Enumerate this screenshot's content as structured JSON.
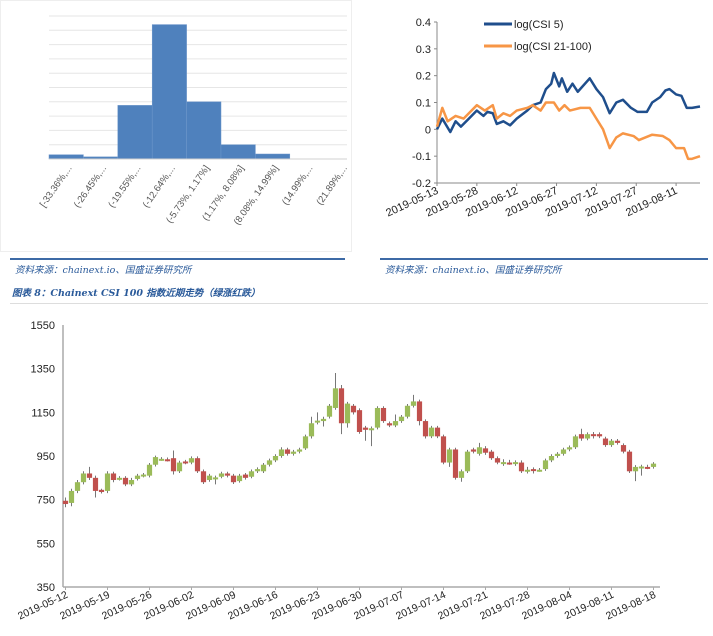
{
  "colors": {
    "bar": "#4f81bd",
    "csi5": "#1f4e8c",
    "csi21": "#f79646",
    "up": "#9bbb59",
    "down": "#c0504d",
    "caption": "#2a5a9a"
  },
  "captions": {
    "source_left": "资料来源：chainext.io、国盛证券研究所",
    "source_right": "资料来源：chainext.io、国盛证券研究所",
    "figure8": "图表 8：Chainext CSI 100 指数近期走势（绿涨红跌）"
  },
  "chart_data": [
    {
      "type": "bar",
      "title": "",
      "categories": [
        "[-33.36%,...",
        "(-26.45%,...",
        "(-19.55%,...",
        "(-12.64%,...",
        "(-5.73%, 1.17%]",
        "(1.17%, 8.08%]",
        "(8.08%, 14.99%]",
        "(14.99%,...",
        "(21.89%,..."
      ],
      "values": [
        0.3,
        0.15,
        3.75,
        9.4,
        4.0,
        1.0,
        0.35,
        0,
        0
      ],
      "ylim": [
        0,
        10
      ],
      "grid": true
    },
    {
      "type": "line",
      "x_unit": "days since 2019-05-13",
      "xlim": [
        0,
        99
      ],
      "ylim": [
        -0.2,
        0.4
      ],
      "yticks": [
        "0.4",
        "0.3",
        "0.2",
        "0.1",
        "0",
        "-0.1",
        "-0.2"
      ],
      "ytick_values": [
        0.4,
        0.3,
        0.2,
        0.1,
        0,
        -0.1,
        -0.2
      ],
      "xticks": [
        "2019-05-13",
        "2019-05-28",
        "2019-06-12",
        "2019-06-27",
        "2019-07-12",
        "2019-07-27",
        "2019-08-11"
      ],
      "xtick_values": [
        0,
        15,
        30,
        45,
        60,
        75,
        90
      ],
      "legend": "top-left",
      "series": [
        {
          "name": "log(CSI 5)",
          "x": [
            0,
            2,
            5,
            7,
            9,
            12,
            15,
            17.5,
            19,
            21,
            22.5,
            25,
            27.5,
            30,
            34,
            36,
            39,
            41,
            43,
            44,
            46,
            47,
            49,
            51,
            53,
            57.5,
            60,
            62.5,
            65,
            67.5,
            70,
            73,
            75.5,
            79,
            81,
            84,
            86,
            87.5,
            90,
            92,
            94,
            96,
            99
          ],
          "y": [
            0,
            0.04,
            -0.01,
            0.03,
            0.01,
            0.04,
            0.07,
            0.05,
            0.065,
            0.06,
            0.02,
            0.03,
            0.015,
            0.04,
            0.07,
            0.09,
            0.1,
            0.15,
            0.17,
            0.21,
            0.16,
            0.19,
            0.14,
            0.17,
            0.14,
            0.19,
            0.15,
            0.12,
            0.06,
            0.1,
            0.11,
            0.08,
            0.065,
            0.065,
            0.1,
            0.12,
            0.145,
            0.15,
            0.13,
            0.125,
            0.08,
            0.08,
            0.085
          ]
        },
        {
          "name": "log(CSI 21-100)",
          "x": [
            0,
            2,
            4,
            7,
            10,
            12,
            15,
            18,
            21,
            22.5,
            25,
            27.5,
            30,
            34,
            36,
            39,
            41,
            44,
            46,
            48,
            50,
            54,
            57.5,
            60,
            62.5,
            65,
            67.5,
            70,
            74,
            76,
            81,
            85,
            87.5,
            90,
            93,
            94.5,
            96,
            99
          ],
          "y": [
            0.01,
            0.08,
            0.03,
            0.05,
            0.04,
            0.06,
            0.09,
            0.07,
            0.09,
            0.04,
            0.06,
            0.05,
            0.07,
            0.08,
            0.09,
            0.07,
            0.1,
            0.1,
            0.07,
            0.09,
            0.07,
            0.08,
            0.08,
            0.04,
            0.0,
            -0.07,
            -0.03,
            -0.015,
            -0.025,
            -0.04,
            -0.02,
            -0.025,
            -0.04,
            -0.07,
            -0.07,
            -0.11,
            -0.11,
            -0.1
          ]
        }
      ]
    },
    {
      "type": "candlestick",
      "title": "Chainext CSI 100",
      "ylim": [
        350,
        1550
      ],
      "yticks": [
        "1550",
        "1350",
        "1150",
        "950",
        "750",
        "550",
        "350"
      ],
      "ytick_values": [
        1550,
        1350,
        1150,
        950,
        750,
        550,
        350
      ],
      "xticks": [
        "2019-05-12",
        "2019-05-19",
        "2019-05-26",
        "2019-06-02",
        "2019-06-09",
        "2019-06-16",
        "2019-06-23",
        "2019-06-30",
        "2019-07-07",
        "2019-07-14",
        "2019-07-21",
        "2019-07-28",
        "2019-08-04",
        "2019-08-11",
        "2019-08-18"
      ],
      "xtick_values": [
        0,
        7,
        14,
        21,
        28,
        35,
        42,
        49,
        56,
        63,
        70,
        77,
        84,
        91,
        98
      ],
      "ohlc_note": "[open, high, low, close], one per day from 2019-05-12",
      "candles": [
        [
          745,
          760,
          715,
          730
        ],
        [
          735,
          800,
          720,
          790
        ],
        [
          790,
          840,
          780,
          830
        ],
        [
          830,
          880,
          820,
          870
        ],
        [
          870,
          900,
          840,
          850
        ],
        [
          850,
          860,
          760,
          790
        ],
        [
          795,
          800,
          778,
          785
        ],
        [
          790,
          880,
          780,
          870
        ],
        [
          870,
          878,
          830,
          840
        ],
        [
          845,
          858,
          838,
          850
        ],
        [
          850,
          858,
          812,
          820
        ],
        [
          820,
          850,
          812,
          840
        ],
        [
          845,
          868,
          838,
          860
        ],
        [
          860,
          872,
          852,
          865
        ],
        [
          860,
          918,
          852,
          910
        ],
        [
          910,
          952,
          902,
          945
        ],
        [
          935,
          945,
          928,
          937
        ],
        [
          935,
          943,
          925,
          933
        ],
        [
          940,
          975,
          865,
          880
        ],
        [
          880,
          928,
          872,
          920
        ],
        [
          925,
          932,
          912,
          920
        ],
        [
          920,
          948,
          912,
          940
        ],
        [
          940,
          948,
          872,
          880
        ],
        [
          880,
          888,
          822,
          830
        ],
        [
          840,
          868,
          832,
          860
        ],
        [
          850,
          860,
          820,
          852
        ],
        [
          855,
          878,
          848,
          870
        ],
        [
          870,
          878,
          852,
          860
        ],
        [
          860,
          868,
          822,
          830
        ],
        [
          835,
          868,
          828,
          860
        ],
        [
          865,
          872,
          842,
          850
        ],
        [
          855,
          888,
          848,
          880
        ],
        [
          880,
          898,
          872,
          890
        ],
        [
          880,
          918,
          872,
          910
        ],
        [
          910,
          938,
          902,
          930
        ],
        [
          930,
          958,
          922,
          950
        ],
        [
          950,
          990,
          942,
          980
        ],
        [
          980,
          988,
          952,
          960
        ],
        [
          960,
          978,
          952,
          970
        ],
        [
          970,
          988,
          962,
          980
        ],
        [
          985,
          1048,
          978,
          1040
        ],
        [
          1040,
          1130,
          1030,
          1100
        ],
        [
          1110,
          1150,
          1095,
          1112
        ],
        [
          1110,
          1130,
          1085,
          1120
        ],
        [
          1130,
          1188,
          1122,
          1180
        ],
        [
          1170,
          1330,
          1162,
          1260
        ],
        [
          1260,
          1275,
          1050,
          1100
        ],
        [
          1100,
          1198,
          1080,
          1190
        ],
        [
          1180,
          1188,
          1140,
          1150
        ],
        [
          1160,
          1168,
          1052,
          1060
        ],
        [
          1080,
          1088,
          1020,
          1070
        ],
        [
          1075,
          1085,
          995,
          1077
        ],
        [
          1080,
          1178,
          1072,
          1170
        ],
        [
          1170,
          1178,
          1102,
          1110
        ],
        [
          1100,
          1108,
          1082,
          1090
        ],
        [
          1090,
          1140,
          1082,
          1110
        ],
        [
          1110,
          1138,
          1102,
          1130
        ],
        [
          1130,
          1188,
          1122,
          1180
        ],
        [
          1180,
          1230,
          1172,
          1200
        ],
        [
          1200,
          1208,
          1090,
          1110
        ],
        [
          1110,
          1118,
          1030,
          1040
        ],
        [
          1040,
          1088,
          1032,
          1080
        ],
        [
          1080,
          1088,
          1032,
          1040
        ],
        [
          1040,
          1048,
          912,
          920
        ],
        [
          920,
          988,
          900,
          980
        ],
        [
          980,
          988,
          842,
          850
        ],
        [
          850,
          888,
          832,
          880
        ],
        [
          880,
          978,
          872,
          970
        ],
        [
          980,
          988,
          962,
          970
        ],
        [
          960,
          1010,
          952,
          990
        ],
        [
          985,
          995,
          955,
          965
        ],
        [
          970,
          978,
          932,
          940
        ],
        [
          940,
          948,
          912,
          920
        ],
        [
          920,
          935,
          905,
          922
        ],
        [
          920,
          932,
          910,
          918
        ],
        [
          920,
          930,
          905,
          922
        ],
        [
          920,
          930,
          872,
          880
        ],
        [
          885,
          900,
          870,
          887
        ],
        [
          890,
          898,
          870,
          888
        ],
        [
          885,
          895,
          878,
          887
        ],
        [
          890,
          938,
          882,
          930
        ],
        [
          930,
          958,
          922,
          950
        ],
        [
          950,
          968,
          942,
          960
        ],
        [
          960,
          988,
          952,
          980
        ],
        [
          980,
          998,
          972,
          990
        ],
        [
          990,
          1048,
          982,
          1040
        ],
        [
          1050,
          1075,
          1020,
          1030
        ],
        [
          1030,
          1058,
          1022,
          1050
        ],
        [
          1050,
          1060,
          1030,
          1048
        ],
        [
          1050,
          1058,
          1032,
          1040
        ],
        [
          1030,
          1038,
          992,
          1000
        ],
        [
          1000,
          1028,
          992,
          1020
        ],
        [
          1020,
          1028,
          1002,
          1010
        ],
        [
          1000,
          1008,
          962,
          970
        ],
        [
          970,
          978,
          872,
          880
        ],
        [
          880,
          908,
          835,
          900
        ],
        [
          900,
          910,
          860,
          902
        ],
        [
          900,
          910,
          890,
          898
        ],
        [
          900,
          922,
          892,
          915
        ]
      ]
    }
  ]
}
